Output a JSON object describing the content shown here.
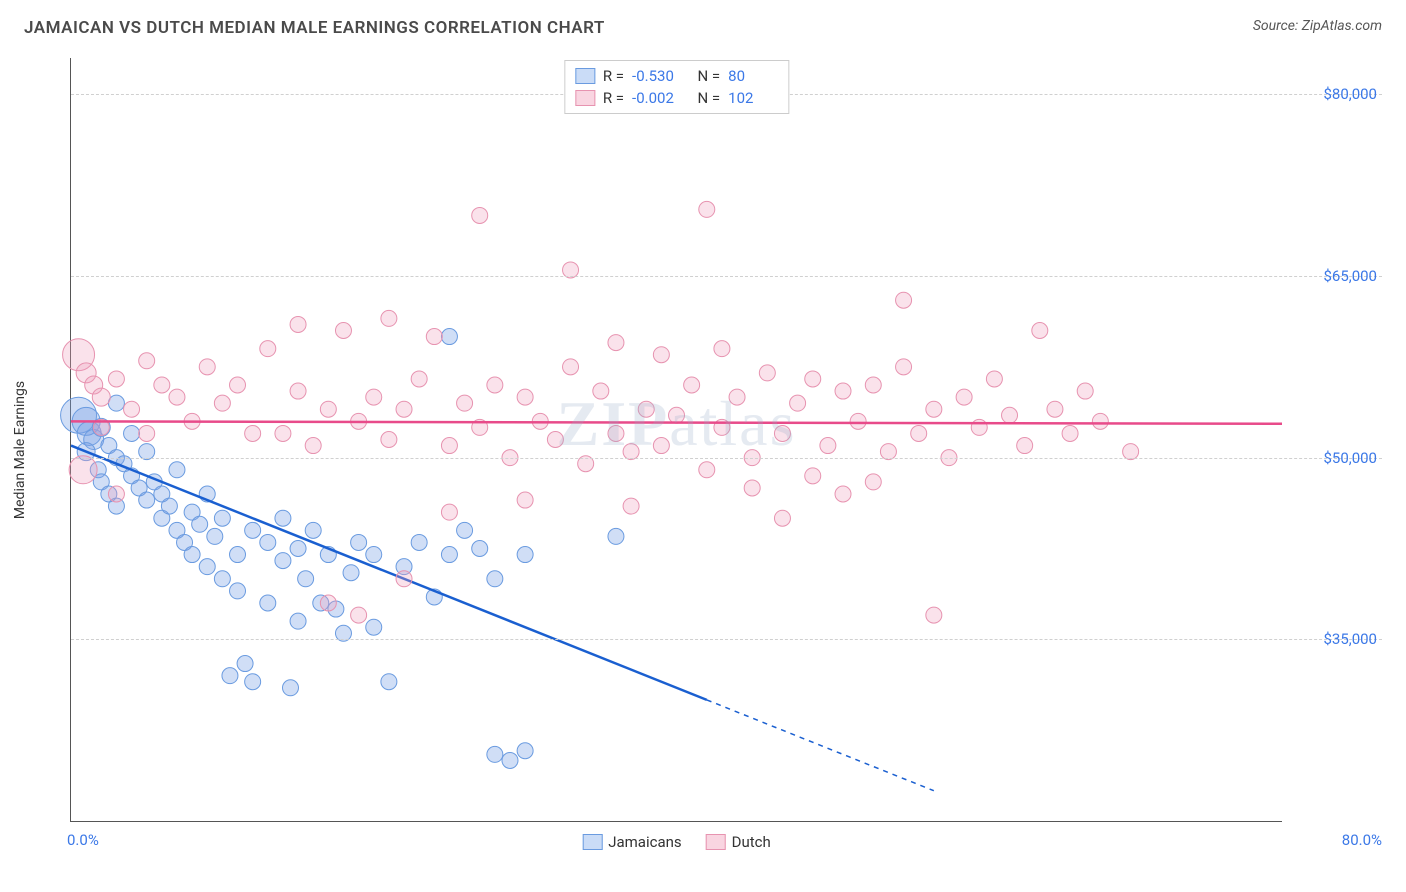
{
  "header": {
    "title": "JAMAICAN VS DUTCH MEDIAN MALE EARNINGS CORRELATION CHART",
    "source_label": "Source: ",
    "source_name": "ZipAtlas.com"
  },
  "chart": {
    "type": "scatter",
    "yaxis_title": "Median Male Earnings",
    "xlim": [
      0,
      80
    ],
    "ylim": [
      20000,
      83000
    ],
    "xtick_min_label": "0.0%",
    "xtick_max_label": "80.0%",
    "yticks": [
      {
        "value": 35000,
        "label": "$35,000"
      },
      {
        "value": 50000,
        "label": "$50,000"
      },
      {
        "value": 65000,
        "label": "$65,000"
      },
      {
        "value": 80000,
        "label": "$80,000"
      }
    ],
    "grid_color": "#d0d0d0",
    "background_color": "#ffffff",
    "watermark_text_bold": "ZIP",
    "watermark_text_rest": "atlas",
    "series": [
      {
        "name": "Jamaicans",
        "fill_color": "rgba(120,160,230,0.35)",
        "stroke_color": "#6a9be0",
        "trend_color": "#1a5fd0",
        "trend_start": {
          "x": 0,
          "y": 51000
        },
        "trend_end_solid": {
          "x": 42,
          "y": 30000
        },
        "trend_end_dashed": {
          "x": 57,
          "y": 22500
        },
        "R": "-0.530",
        "N": "80",
        "swatch_fill": "rgba(150,185,240,0.5)",
        "swatch_border": "#6a9be0",
        "points": [
          {
            "x": 0.5,
            "y": 53500,
            "r": 18
          },
          {
            "x": 1,
            "y": 53000,
            "r": 14
          },
          {
            "x": 1.2,
            "y": 52000,
            "r": 12
          },
          {
            "x": 1.5,
            "y": 51500,
            "r": 10
          },
          {
            "x": 1,
            "y": 50500,
            "r": 9
          },
          {
            "x": 2,
            "y": 52500,
            "r": 9
          },
          {
            "x": 2.5,
            "y": 51000,
            "r": 8
          },
          {
            "x": 1.8,
            "y": 49000,
            "r": 8
          },
          {
            "x": 2,
            "y": 48000,
            "r": 8
          },
          {
            "x": 3,
            "y": 50000,
            "r": 8
          },
          {
            "x": 3.5,
            "y": 49500,
            "r": 8
          },
          {
            "x": 2.5,
            "y": 47000,
            "r": 8
          },
          {
            "x": 3,
            "y": 46000,
            "r": 8
          },
          {
            "x": 4,
            "y": 48500,
            "r": 8
          },
          {
            "x": 4.5,
            "y": 47500,
            "r": 8
          },
          {
            "x": 3,
            "y": 54500,
            "r": 8
          },
          {
            "x": 4,
            "y": 52000,
            "r": 8
          },
          {
            "x": 5,
            "y": 50500,
            "r": 8
          },
          {
            "x": 5,
            "y": 46500,
            "r": 8
          },
          {
            "x": 5.5,
            "y": 48000,
            "r": 8
          },
          {
            "x": 6,
            "y": 45000,
            "r": 8
          },
          {
            "x": 6,
            "y": 47000,
            "r": 8
          },
          {
            "x": 6.5,
            "y": 46000,
            "r": 8
          },
          {
            "x": 7,
            "y": 44000,
            "r": 8
          },
          {
            "x": 7,
            "y": 49000,
            "r": 8
          },
          {
            "x": 7.5,
            "y": 43000,
            "r": 8
          },
          {
            "x": 8,
            "y": 45500,
            "r": 8
          },
          {
            "x": 8,
            "y": 42000,
            "r": 8
          },
          {
            "x": 8.5,
            "y": 44500,
            "r": 8
          },
          {
            "x": 9,
            "y": 47000,
            "r": 8
          },
          {
            "x": 9,
            "y": 41000,
            "r": 8
          },
          {
            "x": 9.5,
            "y": 43500,
            "r": 8
          },
          {
            "x": 10,
            "y": 45000,
            "r": 8
          },
          {
            "x": 10,
            "y": 40000,
            "r": 8
          },
          {
            "x": 10.5,
            "y": 32000,
            "r": 8
          },
          {
            "x": 11,
            "y": 42000,
            "r": 8
          },
          {
            "x": 11,
            "y": 39000,
            "r": 8
          },
          {
            "x": 11.5,
            "y": 33000,
            "r": 8
          },
          {
            "x": 12,
            "y": 44000,
            "r": 8
          },
          {
            "x": 12,
            "y": 31500,
            "r": 8
          },
          {
            "x": 13,
            "y": 43000,
            "r": 8
          },
          {
            "x": 13,
            "y": 38000,
            "r": 8
          },
          {
            "x": 14,
            "y": 45000,
            "r": 8
          },
          {
            "x": 14,
            "y": 41500,
            "r": 8
          },
          {
            "x": 14.5,
            "y": 31000,
            "r": 8
          },
          {
            "x": 15,
            "y": 42500,
            "r": 8
          },
          {
            "x": 15,
            "y": 36500,
            "r": 8
          },
          {
            "x": 15.5,
            "y": 40000,
            "r": 8
          },
          {
            "x": 16,
            "y": 44000,
            "r": 8
          },
          {
            "x": 16.5,
            "y": 38000,
            "r": 8
          },
          {
            "x": 17,
            "y": 42000,
            "r": 8
          },
          {
            "x": 17.5,
            "y": 37500,
            "r": 8
          },
          {
            "x": 18,
            "y": 35500,
            "r": 8
          },
          {
            "x": 18.5,
            "y": 40500,
            "r": 8
          },
          {
            "x": 19,
            "y": 43000,
            "r": 8
          },
          {
            "x": 20,
            "y": 42000,
            "r": 8
          },
          {
            "x": 20,
            "y": 36000,
            "r": 8
          },
          {
            "x": 21,
            "y": 31500,
            "r": 8
          },
          {
            "x": 22,
            "y": 41000,
            "r": 8
          },
          {
            "x": 23,
            "y": 43000,
            "r": 8
          },
          {
            "x": 24,
            "y": 38500,
            "r": 8
          },
          {
            "x": 25,
            "y": 60000,
            "r": 8
          },
          {
            "x": 25,
            "y": 42000,
            "r": 8
          },
          {
            "x": 26,
            "y": 44000,
            "r": 8
          },
          {
            "x": 27,
            "y": 42500,
            "r": 8
          },
          {
            "x": 28,
            "y": 40000,
            "r": 8
          },
          {
            "x": 28,
            "y": 25500,
            "r": 8
          },
          {
            "x": 29,
            "y": 25000,
            "r": 8
          },
          {
            "x": 30,
            "y": 42000,
            "r": 8
          },
          {
            "x": 30,
            "y": 25800,
            "r": 8
          },
          {
            "x": 36,
            "y": 43500,
            "r": 8
          }
        ]
      },
      {
        "name": "Dutch",
        "fill_color": "rgba(240,160,190,0.30)",
        "stroke_color": "#e793b0",
        "trend_color": "#e84b8a",
        "trend_start": {
          "x": 0,
          "y": 53000
        },
        "trend_end_solid": {
          "x": 80,
          "y": 52800
        },
        "R": "-0.002",
        "N": "102",
        "swatch_fill": "rgba(245,185,205,0.6)",
        "swatch_border": "#e793b0",
        "points": [
          {
            "x": 0.5,
            "y": 58500,
            "r": 16
          },
          {
            "x": 0.8,
            "y": 49000,
            "r": 14
          },
          {
            "x": 1,
            "y": 57000,
            "r": 10
          },
          {
            "x": 1.5,
            "y": 56000,
            "r": 9
          },
          {
            "x": 2,
            "y": 55000,
            "r": 9
          },
          {
            "x": 2,
            "y": 52500,
            "r": 8
          },
          {
            "x": 3,
            "y": 56500,
            "r": 8
          },
          {
            "x": 3,
            "y": 47000,
            "r": 8
          },
          {
            "x": 4,
            "y": 54000,
            "r": 8
          },
          {
            "x": 5,
            "y": 58000,
            "r": 8
          },
          {
            "x": 5,
            "y": 52000,
            "r": 8
          },
          {
            "x": 6,
            "y": 56000,
            "r": 8
          },
          {
            "x": 7,
            "y": 55000,
            "r": 8
          },
          {
            "x": 8,
            "y": 53000,
            "r": 8
          },
          {
            "x": 9,
            "y": 57500,
            "r": 8
          },
          {
            "x": 10,
            "y": 54500,
            "r": 8
          },
          {
            "x": 11,
            "y": 56000,
            "r": 8
          },
          {
            "x": 12,
            "y": 52000,
            "r": 8
          },
          {
            "x": 13,
            "y": 59000,
            "r": 8
          },
          {
            "x": 14,
            "y": 52000,
            "r": 8
          },
          {
            "x": 15,
            "y": 55500,
            "r": 8
          },
          {
            "x": 15,
            "y": 61000,
            "r": 8
          },
          {
            "x": 16,
            "y": 51000,
            "r": 8
          },
          {
            "x": 17,
            "y": 54000,
            "r": 8
          },
          {
            "x": 17,
            "y": 38000,
            "r": 8
          },
          {
            "x": 18,
            "y": 60500,
            "r": 8
          },
          {
            "x": 19,
            "y": 53000,
            "r": 8
          },
          {
            "x": 19,
            "y": 37000,
            "r": 8
          },
          {
            "x": 20,
            "y": 55000,
            "r": 8
          },
          {
            "x": 21,
            "y": 61500,
            "r": 8
          },
          {
            "x": 21,
            "y": 51500,
            "r": 8
          },
          {
            "x": 22,
            "y": 54000,
            "r": 8
          },
          {
            "x": 22,
            "y": 40000,
            "r": 8
          },
          {
            "x": 23,
            "y": 56500,
            "r": 8
          },
          {
            "x": 24,
            "y": 60000,
            "r": 8
          },
          {
            "x": 25,
            "y": 51000,
            "r": 8
          },
          {
            "x": 25,
            "y": 45500,
            "r": 8
          },
          {
            "x": 26,
            "y": 54500,
            "r": 8
          },
          {
            "x": 27,
            "y": 70000,
            "r": 8
          },
          {
            "x": 27,
            "y": 52500,
            "r": 8
          },
          {
            "x": 28,
            "y": 56000,
            "r": 8
          },
          {
            "x": 29,
            "y": 50000,
            "r": 8
          },
          {
            "x": 30,
            "y": 55000,
            "r": 8
          },
          {
            "x": 30,
            "y": 46500,
            "r": 8
          },
          {
            "x": 31,
            "y": 53000,
            "r": 8
          },
          {
            "x": 32,
            "y": 51500,
            "r": 8
          },
          {
            "x": 33,
            "y": 57500,
            "r": 8
          },
          {
            "x": 33,
            "y": 65500,
            "r": 8
          },
          {
            "x": 34,
            "y": 49500,
            "r": 8
          },
          {
            "x": 35,
            "y": 55500,
            "r": 8
          },
          {
            "x": 36,
            "y": 52000,
            "r": 8
          },
          {
            "x": 36,
            "y": 59500,
            "r": 8
          },
          {
            "x": 37,
            "y": 50500,
            "r": 8
          },
          {
            "x": 37,
            "y": 46000,
            "r": 8
          },
          {
            "x": 38,
            "y": 54000,
            "r": 8
          },
          {
            "x": 39,
            "y": 51000,
            "r": 8
          },
          {
            "x": 39,
            "y": 58500,
            "r": 8
          },
          {
            "x": 40,
            "y": 53500,
            "r": 8
          },
          {
            "x": 41,
            "y": 56000,
            "r": 8
          },
          {
            "x": 42,
            "y": 49000,
            "r": 8
          },
          {
            "x": 42,
            "y": 70500,
            "r": 8
          },
          {
            "x": 43,
            "y": 52500,
            "r": 8
          },
          {
            "x": 43,
            "y": 59000,
            "r": 8
          },
          {
            "x": 44,
            "y": 55000,
            "r": 8
          },
          {
            "x": 45,
            "y": 50000,
            "r": 8
          },
          {
            "x": 45,
            "y": 47500,
            "r": 8
          },
          {
            "x": 46,
            "y": 57000,
            "r": 8
          },
          {
            "x": 47,
            "y": 52000,
            "r": 8
          },
          {
            "x": 47,
            "y": 45000,
            "r": 8
          },
          {
            "x": 48,
            "y": 54500,
            "r": 8
          },
          {
            "x": 49,
            "y": 56500,
            "r": 8
          },
          {
            "x": 49,
            "y": 48500,
            "r": 8
          },
          {
            "x": 50,
            "y": 51000,
            "r": 8
          },
          {
            "x": 51,
            "y": 55500,
            "r": 8
          },
          {
            "x": 51,
            "y": 47000,
            "r": 8
          },
          {
            "x": 52,
            "y": 53000,
            "r": 8
          },
          {
            "x": 53,
            "y": 56000,
            "r": 8
          },
          {
            "x": 53,
            "y": 48000,
            "r": 8
          },
          {
            "x": 54,
            "y": 50500,
            "r": 8
          },
          {
            "x": 55,
            "y": 57500,
            "r": 8
          },
          {
            "x": 55,
            "y": 63000,
            "r": 8
          },
          {
            "x": 56,
            "y": 52000,
            "r": 8
          },
          {
            "x": 57,
            "y": 54000,
            "r": 8
          },
          {
            "x": 57,
            "y": 37000,
            "r": 8
          },
          {
            "x": 58,
            "y": 50000,
            "r": 8
          },
          {
            "x": 59,
            "y": 55000,
            "r": 8
          },
          {
            "x": 60,
            "y": 52500,
            "r": 8
          },
          {
            "x": 61,
            "y": 56500,
            "r": 8
          },
          {
            "x": 62,
            "y": 53500,
            "r": 8
          },
          {
            "x": 63,
            "y": 51000,
            "r": 8
          },
          {
            "x": 64,
            "y": 60500,
            "r": 8
          },
          {
            "x": 65,
            "y": 54000,
            "r": 8
          },
          {
            "x": 66,
            "y": 52000,
            "r": 8
          },
          {
            "x": 67,
            "y": 55500,
            "r": 8
          },
          {
            "x": 68,
            "y": 53000,
            "r": 8
          },
          {
            "x": 70,
            "y": 50500,
            "r": 8
          }
        ]
      }
    ],
    "bottom_legend": [
      {
        "label": "Jamaicans",
        "swatch_fill": "rgba(150,185,240,0.5)",
        "swatch_border": "#6a9be0"
      },
      {
        "label": "Dutch",
        "swatch_fill": "rgba(245,185,205,0.6)",
        "swatch_border": "#e793b0"
      }
    ]
  }
}
